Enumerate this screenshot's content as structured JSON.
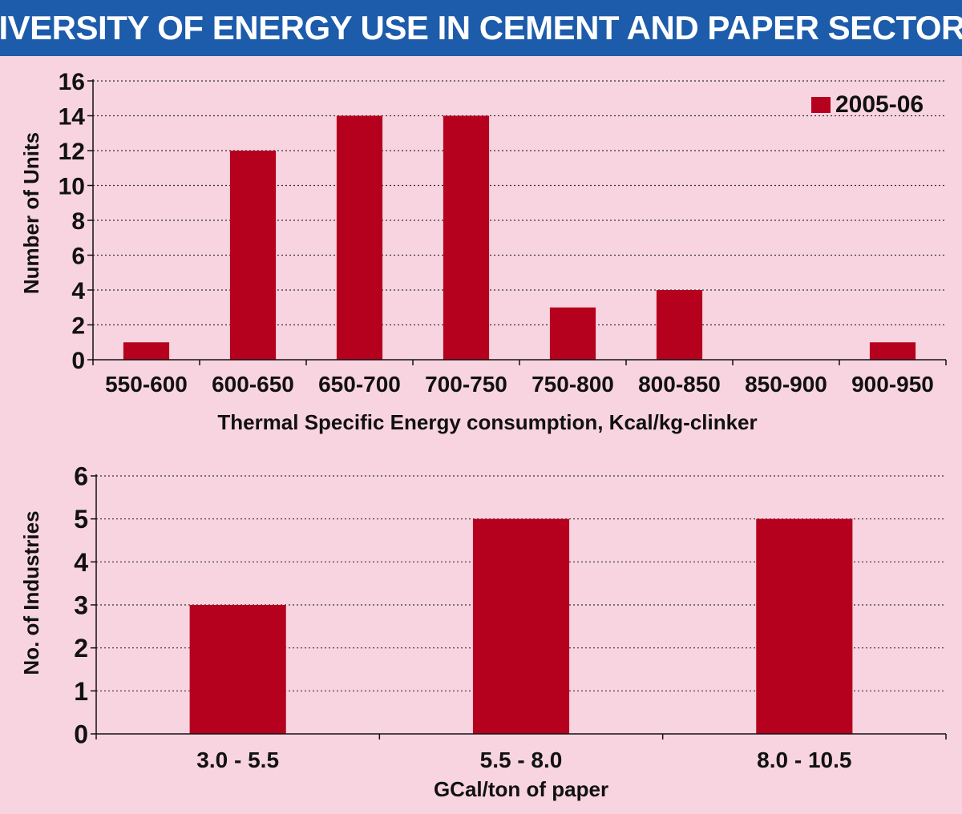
{
  "header": {
    "title": "DIVERSITY OF ENERGY USE IN CEMENT AND PAPER SECTORS"
  },
  "colors": {
    "background": "#f8d4e0",
    "title_bar": "#1d5bab",
    "bar": "#b5001e"
  },
  "chart_data": [
    {
      "type": "bar",
      "categories": [
        "550-600",
        "600-650",
        "650-700",
        "700-750",
        "750-800",
        "800-850",
        "850-900",
        "900-950"
      ],
      "series": [
        {
          "name": "2005-06",
          "values": [
            1,
            12,
            14,
            14,
            3,
            4,
            0,
            1
          ]
        }
      ],
      "title": "",
      "xlabel": "Thermal Specific Energy consumption, Kcal/kg-clinker",
      "ylabel": "Number of Units",
      "ylim": [
        0,
        16
      ],
      "yticks": [
        "0",
        "2",
        "4",
        "6",
        "8",
        "10",
        "12",
        "14",
        "16"
      ],
      "grid": true,
      "legend": "top-right"
    },
    {
      "type": "bar",
      "categories": [
        "3.0 - 5.5",
        "5.5 - 8.0",
        "8.0 - 10.5"
      ],
      "series": [
        {
          "values": [
            3,
            5,
            5
          ]
        }
      ],
      "title": "",
      "xlabel": "GCal/ton of paper",
      "ylabel": "No. of Industries",
      "ylim": [
        0,
        6
      ],
      "yticks": [
        "0",
        "1",
        "2",
        "3",
        "4",
        "5",
        "6"
      ],
      "grid": true,
      "legend": "none"
    }
  ]
}
